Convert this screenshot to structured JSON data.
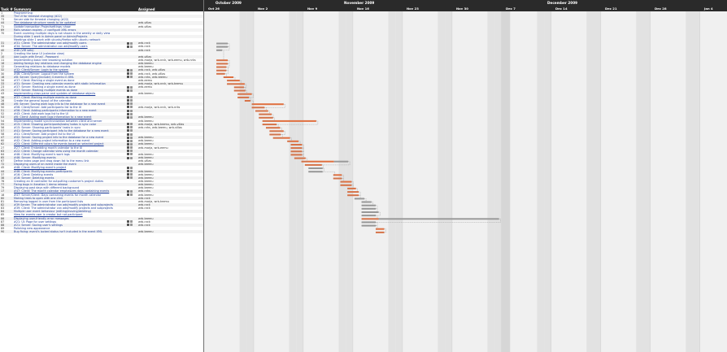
{
  "left_header": {
    "id_col": "Task #",
    "summary_col": "Summary",
    "assigned_col": "Assigned"
  },
  "months": [
    "October 2009",
    "November 2009",
    "December 2009"
  ],
  "weeks": [
    "Oct 26",
    "Nov 2",
    "Nov 9",
    "Nov 16",
    "Nov 23",
    "Nov 30",
    "Dec 7",
    "Dec 14",
    "Dec 21",
    "Dec 28",
    "Jan 4"
  ],
  "colors": {
    "done": "#e07040",
    "remaining": "#9a9a9a",
    "weekend": "#e2e2e2",
    "header_bg": "#2a2a2a",
    "link": "#1a3a99"
  },
  "tasks": [
    {
      "id": "1",
      "summary": "Programming",
      "assigned": "",
      "icons": 0,
      "bar": null
    },
    {
      "id": "35",
      "summary": "The UI for timeslot changing (#22)",
      "assigned": "",
      "icons": 0,
      "bar": null
    },
    {
      "id": "73",
      "summary": "Server side for timeslot changing (#22)",
      "assigned": "",
      "icons": 0,
      "bar": null
    },
    {
      "id": "44",
      "summary": "The database structure needs to be updated",
      "assigned": "wrb-villas",
      "icons": 0,
      "bar": null
    },
    {
      "id": "71",
      "summary": "Update transaction Projectsettings: show",
      "assigned": "wrb-villas",
      "icons": 0,
      "bar": null
    },
    {
      "id": "69",
      "summary": "Rails session expires -> configure XML errors",
      "assigned": "",
      "icons": 0,
      "bar": null
    },
    {
      "id": "70",
      "summary": "Event covering multiple days is not shown in the weekly or daily view",
      "assigned": "",
      "icons": 0,
      "bar": null
    },
    {
      "id": "",
      "summary": "During slide 1 work in Admin panel or Admin/Projects",
      "assigned": "",
      "icons": 0,
      "bar": null
    },
    {
      "id": "",
      "summary": "Meetings slide 1 work with ubuntu/firefox with ubuntu network",
      "assigned": "",
      "icons": 0,
      "bar": null
    },
    {
      "id": "31",
      "summary": "#31: Client: The administrator can add/modify users",
      "assigned": "wrb-nrck",
      "icons": 2,
      "bar": {
        "s": 3,
        "d": 0,
        "r": 1.6
      }
    },
    {
      "id": "33",
      "summary": "#34: Server: The administrator can add/modify users",
      "assigned": "wrb-nrck",
      "icons": 2,
      "bar": {
        "s": 3,
        "d": 0,
        "r": 1.6
      }
    },
    {
      "id": "40",
      "summary": "#40 (VIR sets)",
      "assigned": "wrb-nrck",
      "icons": 0,
      "bar": {
        "s": 3,
        "d": 0,
        "r": 0.8
      }
    },
    {
      "id": "2",
      "summary": "Creating the base UI (calendar view)",
      "assigned": "",
      "icons": 0,
      "bar": null
    },
    {
      "id": "10",
      "summary": "Add Login with Email - Password",
      "assigned": "wrb-villas",
      "icons": 0,
      "bar": null
    },
    {
      "id": "11",
      "summary": "Implementing basic tree browsing solution",
      "assigned": "wrb-marja, wrb-nrck, wrb-eemu, wrb-nrks",
      "icons": 0,
      "bar": {
        "s": 3,
        "d": 1.6,
        "r": 0
      }
    },
    {
      "id": "16",
      "summary": "Adding foreign key relations and changing the database engine",
      "assigned": "wrb-teemu",
      "icons": 0,
      "bar": {
        "s": 3,
        "d": 1.6,
        "r": 0
      }
    },
    {
      "id": "12",
      "summary": "Generating relations to database models",
      "assigned": "wrb-teemu",
      "icons": 0,
      "bar": {
        "s": 3,
        "d": 1.4,
        "r": 0
      }
    },
    {
      "id": "32",
      "summary": "#32: Client/Server: Login to the system",
      "assigned": "wrb-nrck, wrb-villas",
      "icons": 2,
      "bar": {
        "s": 3,
        "d": 1.4,
        "r": 0
      }
    },
    {
      "id": "30",
      "summary": "#46: Client/Server: Logout from the system",
      "assigned": "wrb-nrck, wrb-villas",
      "icons": 2,
      "bar": {
        "s": 3,
        "d": 1.2,
        "r": 0
      }
    },
    {
      "id": "18",
      "summary": "#8: Server: Query(include) 4 events in XML",
      "assigned": "wrb-nrks, wrb-teemu",
      "icons": 2,
      "bar": {
        "s": 5,
        "d": 1.4,
        "r": 0
      }
    },
    {
      "id": "34",
      "summary": "#37: Client: Marking a single event as done",
      "assigned": "wrb-eemu",
      "icons": 0,
      "bar": {
        "s": 6,
        "d": 1.8,
        "r": 0
      }
    },
    {
      "id": "33",
      "summary": "#31: Server: Creating new calendar events with static information",
      "assigned": "wrb-marja, wrb-nrck, wrb-teemu",
      "icons": 0,
      "bar": {
        "s": 6,
        "d": 2.5,
        "r": 0
      }
    },
    {
      "id": "23",
      "summary": "#37: Server: Marking a single event as done",
      "assigned": "wrb-eemu",
      "icons": 2,
      "bar": {
        "s": 8,
        "d": 1.4,
        "r": 0
      }
    },
    {
      "id": "25",
      "summary": "#37: Server: Marking multiple events as done",
      "assigned": "",
      "icons": 2,
      "bar": {
        "s": 8,
        "d": 1.6,
        "r": 0
      }
    },
    {
      "id": "43",
      "summary": "Implementing class parse and updates of database objects",
      "assigned": "wrb-teemu",
      "icons": 0,
      "bar": {
        "s": 9,
        "d": 2.0,
        "r": 0
      }
    },
    {
      "id": "36",
      "summary": "#37: Client: Marking multiple events as done",
      "assigned": "",
      "icons": 2,
      "bar": {
        "s": 9,
        "d": 1.6,
        "r": 0
      }
    },
    {
      "id": "28",
      "summary": "Create the general layout of the calendar",
      "assigned": "",
      "icons": 2,
      "bar": {
        "s": 11,
        "d": 0.8,
        "r": 0
      }
    },
    {
      "id": "48",
      "summary": "#6: Server: Saving work logs info to the database for a new event",
      "assigned": "",
      "icons": 2,
      "bar": {
        "s": 13,
        "d": 4.5,
        "r": 0
      }
    },
    {
      "id": "50",
      "summary": "#56: Client/Server: Add participants list to the UI",
      "assigned": "wrb-marja, wrb-nrck, wrb-nrks",
      "icons": 2,
      "bar": {
        "s": 13,
        "d": 1.8,
        "r": 0
      }
    },
    {
      "id": "51",
      "summary": "#56: Client: Adding participants information to a new event",
      "assigned": "",
      "icons": 2,
      "bar": {
        "s": 14,
        "d": 1.8,
        "r": 0
      }
    },
    {
      "id": "52",
      "summary": "#43: Client: Add work logs list to the UI",
      "assigned": "",
      "icons": 2,
      "bar": {
        "s": 15,
        "d": 1.8,
        "r": 0
      }
    },
    {
      "id": "53",
      "summary": "#6: Client: Adding work logs information to a new event",
      "assigned": "wrb-teemu",
      "icons": 2,
      "bar": {
        "s": 15,
        "d": 2.0,
        "r": 0
      }
    },
    {
      "id": "54",
      "summary": "Implementing model synchronization between client and server",
      "assigned": "wrb-teemu",
      "icons": 0,
      "bar": {
        "s": 16,
        "d": 7.6,
        "r": 0
      }
    },
    {
      "id": "55",
      "summary": "#15: Client: Showing participants/tasks/ todos in sync color",
      "assigned": "wrb-marja, wrb-teemu, wrb-villas",
      "icons": 2,
      "bar": {
        "s": 16,
        "d": 2.0,
        "r": 0
      }
    },
    {
      "id": "56",
      "summary": "#15: Server: Showing participants' tasks in sync",
      "assigned": "wrb-nrks, wrb-teemu, wrb-villas",
      "icons": 2,
      "bar": {
        "s": 17,
        "d": 2.0,
        "r": 0
      }
    },
    {
      "id": "57",
      "summary": "#41: Server: Saving participant info to the database for a new event",
      "assigned": "",
      "icons": 2,
      "bar": {
        "s": 18,
        "d": 2.0,
        "r": 0
      }
    },
    {
      "id": "58",
      "summary": "#41: Client/Server: Add project list to the UI",
      "assigned": "",
      "icons": 2,
      "bar": {
        "s": 18,
        "d": 1.6,
        "r": 0
      }
    },
    {
      "id": "47",
      "summary": "#42: Server: Saving project info to the database for a new event",
      "assigned": "wrb-teemu",
      "icons": 2,
      "bar": {
        "s": 19,
        "d": 2.4,
        "r": 0
      }
    },
    {
      "id": "60",
      "summary": "#42: Client: Adding project information to a new event",
      "assigned": "wrb-teemu",
      "icons": 2,
      "bar": {
        "s": 23,
        "d": 1.6,
        "r": 0
      }
    },
    {
      "id": "62",
      "summary": "#23: Client: Different colors for events based on selected project",
      "assigned": "wrb-teemu",
      "icons": 2,
      "bar": {
        "s": 24,
        "d": 1.6,
        "r": 0
      }
    },
    {
      "id": "27",
      "summary": "#27: Client: Embedding month calendar to the UI",
      "assigned": "wrb-marja, wrb-eemu",
      "icons": 2,
      "bar": {
        "s": 24,
        "d": 1.6,
        "r": 0
      }
    },
    {
      "id": "63",
      "summary": "#22: Client: Change calendar view using the month calendar",
      "assigned": "",
      "icons": 2,
      "bar": {
        "s": 24,
        "d": 1.6,
        "r": 0
      }
    },
    {
      "id": "64",
      "summary": "#46: Client: Modifying event's work logs",
      "assigned": "wrb-teemu",
      "icons": 2,
      "bar": {
        "s": 24,
        "d": 1.6,
        "r": 0
      }
    },
    {
      "id": "65",
      "summary": "#46: Server: Modifying events",
      "assigned": "wrb-teemu",
      "icons": 2,
      "bar": {
        "s": 25,
        "d": 1.6,
        "r": 0
      }
    },
    {
      "id": "67",
      "summary": "Define index page and drag down list to the menu link",
      "assigned": "wrb-villas",
      "icons": 0,
      "bar": {
        "s": 27,
        "d": 4.6,
        "r": 2.0
      }
    },
    {
      "id": "72",
      "summary": "Displaying users of an event inside the event",
      "assigned": "wrb-teemu",
      "icons": 0,
      "bar": {
        "s": 28,
        "d": 2.4,
        "r": 0
      }
    },
    {
      "id": "45",
      "summary": "#46: Client: Modifying event's project",
      "assigned": "",
      "icons": 2,
      "bar": {
        "s": 29,
        "d": 0,
        "r": 2.0
      }
    },
    {
      "id": "44",
      "summary": "#46: Client: Modifying events participants",
      "assigned": "wrb-teemu",
      "icons": 2,
      "bar": {
        "s": 29,
        "d": 0,
        "r": 2.0
      }
    },
    {
      "id": "37",
      "summary": "#16: Client: Deleting events",
      "assigned": "wrb-teemu",
      "icons": 2,
      "bar": {
        "s": 36,
        "d": 1.2,
        "r": 0
      }
    },
    {
      "id": "38",
      "summary": "#16: Server: Deleting events",
      "assigned": "wrb-teemu",
      "icons": 2,
      "bar": {
        "s": 36,
        "d": 1.2,
        "r": 0
      }
    },
    {
      "id": "76",
      "summary": "Creating an XI controller for outputting customer's project duties",
      "assigned": "wrb-teemu",
      "icons": 0,
      "bar": {
        "s": 38,
        "d": 1.6,
        "r": 0
      }
    },
    {
      "id": "77",
      "summary": "Fixing bugs in iteration 1 demo release",
      "assigned": "wrb-teemu",
      "icons": 0,
      "bar": {
        "s": 38,
        "d": 1.6,
        "r": 0
      }
    },
    {
      "id": "79",
      "summary": "Displaying past days with different background",
      "assigned": "wrb-teemu",
      "icons": 0,
      "bar": {
        "s": 40,
        "d": 1.2,
        "r": 0
      }
    },
    {
      "id": "17",
      "summary": "#47: Client: The month calendar emphasizes days containing events",
      "assigned": "wrb-nrks",
      "icons": 2,
      "bar": {
        "s": 40,
        "d": 1.6,
        "r": 0
      }
    },
    {
      "id": "18",
      "summary": "#47: Server/Client: Days containing events for month calendar",
      "assigned": "wrb-teemu",
      "icons": 2,
      "bar": {
        "s": 40,
        "d": 1.6,
        "r": 0
      }
    },
    {
      "id": "80",
      "summary": "Making trees to open with one click",
      "assigned": "wrb-nrck",
      "icons": 0,
      "bar": {
        "s": 42,
        "d": 0,
        "r": 1.4
      }
    },
    {
      "id": "81",
      "summary": "Removing logged in user from the participant lists",
      "assigned": "wrb-marja, wrb-teemu",
      "icons": 0,
      "bar": {
        "s": 44,
        "d": 0,
        "r": 1.4
      }
    },
    {
      "id": "82",
      "summary": "#39 Server: The administrator can add/modify projects and subprojects",
      "assigned": "wrb-nrck",
      "icons": 0,
      "bar": {
        "s": 44,
        "d": 0,
        "r": 2.0
      }
    },
    {
      "id": "83",
      "summary": "#39: Client: The administrator can add/modify projects and subprojects",
      "assigned": "wrb-nrck",
      "icons": 0,
      "bar": {
        "s": 44,
        "d": 0,
        "r": 2.0
      }
    },
    {
      "id": "84",
      "summary": "Multiple user event behaviour (editing/moving/deleting)",
      "assigned": "",
      "icons": 0,
      "bar": {
        "s": 44,
        "d": 0,
        "r": 2.4
      }
    },
    {
      "id": "85",
      "summary": "View for events user is creator but not participant",
      "assigned": "",
      "icons": 0,
      "bar": {
        "s": 44,
        "d": 0,
        "r": 2.0
      }
    },
    {
      "id": "86",
      "summary": "Displaying user-friendly error messages",
      "assigned": "wrb-teemu",
      "icons": 0,
      "bar": {
        "s": 44,
        "d": 2.4,
        "r": 17
      }
    },
    {
      "id": "87",
      "summary": "#21: UI: Page for user settings",
      "assigned": "wrb-nrck",
      "icons": 2,
      "bar": {
        "s": 44,
        "d": 0,
        "r": 2.0
      }
    },
    {
      "id": "88",
      "summary": "#21: Server: Saving user's settings",
      "assigned": "wrb-nrck",
      "icons": 2,
      "bar": {
        "s": 44,
        "d": 0,
        "r": 2.0
      }
    },
    {
      "id": "89",
      "summary": "Polishing new appearance",
      "assigned": "",
      "icons": 0,
      "bar": {
        "s": 48,
        "d": 1.2,
        "r": 0
      }
    },
    {
      "id": "90",
      "summary": "Bug fixing: event's locked status isn't included in the event XML",
      "assigned": "wrb-teemu",
      "icons": 0,
      "bar": {
        "s": 48,
        "d": 1.2,
        "r": 0
      }
    }
  ]
}
